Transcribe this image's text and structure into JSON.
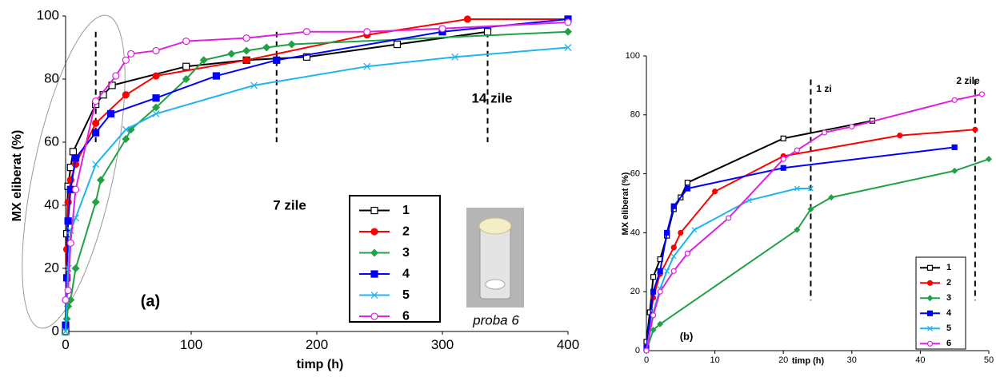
{
  "chart_data": [
    {
      "type": "scatter",
      "xlabel": "timp (h)",
      "ylabel": "MX eliberat  (%)",
      "xlim": [
        0,
        400
      ],
      "xticks": [
        0,
        100,
        200,
        300,
        400
      ],
      "ylim": [
        0,
        100
      ],
      "yticks": [
        0,
        20,
        40,
        60,
        80,
        100
      ],
      "vlines": [
        24,
        168,
        336
      ],
      "annotations": [
        "7 zile",
        "14 zile",
        "(a)",
        "proba 6"
      ],
      "series": [
        {
          "name": "1",
          "color": "#000000",
          "marker": "square-open",
          "x": [
            0,
            1,
            2,
            4,
            6,
            24,
            30,
            37,
            96,
            144,
            192,
            264,
            336
          ],
          "values": [
            0,
            31,
            46,
            52,
            57,
            72,
            75,
            78,
            84,
            86,
            87,
            91,
            95
          ]
        },
        {
          "name": "2",
          "color": "#ff0000",
          "marker": "circle",
          "x": [
            0,
            1,
            2,
            4,
            8,
            24,
            48,
            72,
            144,
            240,
            320,
            400
          ],
          "values": [
            2,
            26,
            41,
            48,
            53,
            66,
            75,
            81,
            86,
            94,
            99,
            99
          ]
        },
        {
          "name": "3",
          "color": "#22a045",
          "marker": "diamond",
          "x": [
            0,
            1,
            2,
            4,
            8,
            24,
            28,
            48,
            52,
            72,
            96,
            110,
            132,
            144,
            160,
            180,
            400
          ],
          "values": [
            1,
            4,
            8,
            10,
            20,
            41,
            48,
            61,
            64,
            71,
            80,
            86,
            88,
            89,
            90,
            91,
            95
          ]
        },
        {
          "name": "4",
          "color": "#0000ff",
          "marker": "square",
          "x": [
            0,
            1,
            2,
            4,
            8,
            24,
            36,
            72,
            120,
            168,
            300,
            400
          ],
          "values": [
            2,
            17,
            35,
            45,
            55,
            63,
            69,
            74,
            81,
            86,
            95,
            99
          ]
        },
        {
          "name": "5",
          "color": "#1fb4f0",
          "marker": "x",
          "x": [
            0,
            2,
            4,
            8,
            24,
            48,
            72,
            150,
            240,
            310,
            400
          ],
          "values": [
            0,
            20,
            32,
            36,
            53,
            64,
            69,
            78,
            84,
            87,
            90
          ]
        },
        {
          "name": "6",
          "color": "#e020e0",
          "marker": "circle-open",
          "x": [
            0,
            2,
            4,
            8,
            24,
            40,
            48,
            52,
            72,
            96,
            144,
            192,
            240,
            300,
            400
          ],
          "values": [
            10,
            13,
            28,
            45,
            73,
            81,
            86,
            88,
            89,
            92,
            93,
            95,
            95,
            96,
            98
          ]
        }
      ]
    },
    {
      "type": "scatter",
      "xlabel": "timp (h)",
      "ylabel": "MX eliberat  (%)",
      "xlim": [
        0,
        50
      ],
      "xticks": [
        0,
        10,
        20,
        30,
        40,
        50
      ],
      "ylim": [
        0,
        100
      ],
      "yticks": [
        0,
        20,
        40,
        60,
        80,
        100
      ],
      "vlines": [
        24,
        48
      ],
      "annotations": [
        "1 zi",
        "2 zile",
        "(b)"
      ],
      "series": [
        {
          "name": "1",
          "color": "#000000",
          "marker": "square-open",
          "x": [
            0,
            0.5,
            1,
            2,
            3,
            4,
            5,
            6,
            20,
            33
          ],
          "values": [
            3,
            13,
            25,
            31,
            39,
            48,
            52,
            57,
            72,
            78
          ]
        },
        {
          "name": "2",
          "color": "#ff0000",
          "marker": "circle",
          "x": [
            0,
            1,
            2,
            4,
            5,
            10,
            20,
            37,
            48
          ],
          "values": [
            1,
            18,
            26,
            35,
            40,
            54,
            66,
            73,
            75
          ]
        },
        {
          "name": "3",
          "color": "#22a045",
          "marker": "diamond",
          "x": [
            0,
            1,
            2,
            22,
            24,
            27,
            45,
            50
          ],
          "values": [
            0,
            7,
            9,
            41,
            48,
            52,
            61,
            65
          ]
        },
        {
          "name": "4",
          "color": "#0000ff",
          "marker": "square",
          "x": [
            0,
            1,
            2,
            3,
            4,
            6,
            20,
            45
          ],
          "values": [
            1,
            20,
            27,
            40,
            49,
            55,
            62,
            69
          ]
        },
        {
          "name": "5",
          "color": "#1fb4f0",
          "marker": "x",
          "x": [
            0,
            1,
            2,
            3,
            4,
            7,
            15,
            22,
            24
          ],
          "values": [
            0,
            13,
            21,
            27,
            32,
            41,
            51,
            55,
            55
          ]
        },
        {
          "name": "6",
          "color": "#e020e0",
          "marker": "circle-open",
          "x": [
            0,
            1,
            2,
            4,
            6,
            12,
            20,
            22,
            26,
            30,
            45,
            49
          ],
          "values": [
            0,
            12,
            20,
            27,
            33,
            45,
            65,
            68,
            74,
            76,
            85,
            87
          ]
        }
      ]
    }
  ]
}
